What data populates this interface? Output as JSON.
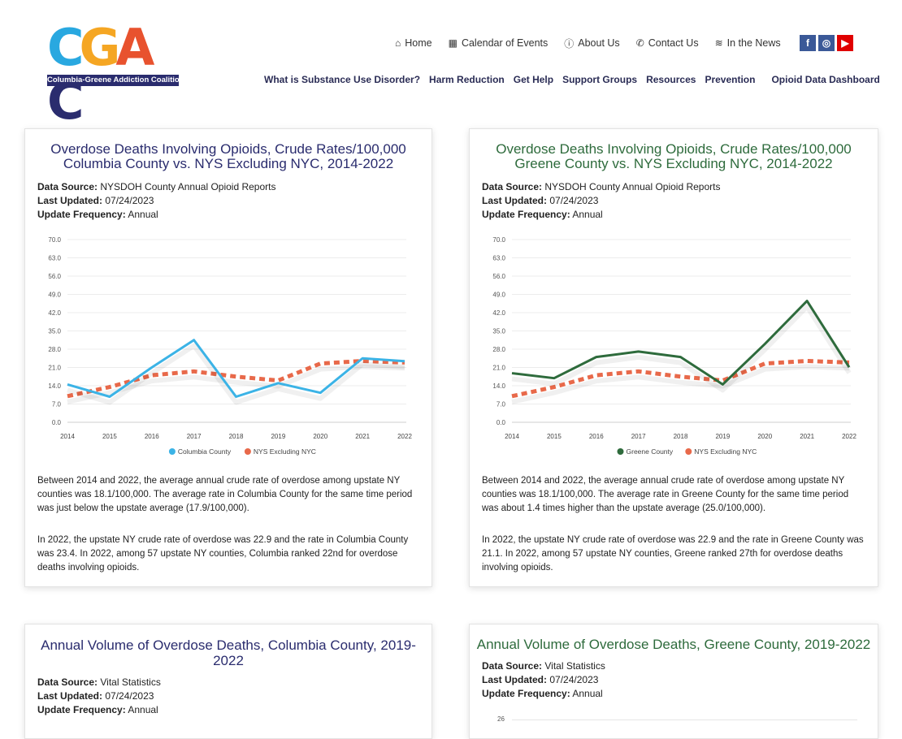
{
  "logo": {
    "letters": [
      "C",
      "G",
      "A",
      "C"
    ],
    "colors": [
      "#29a8e0",
      "#f5a623",
      "#e8522e",
      "#2a2c6e"
    ],
    "tagline": "Columbia-Greene Addiction Coalition"
  },
  "topnav": [
    {
      "icon": "home-icon",
      "glyph": "⌂",
      "label": "Home"
    },
    {
      "icon": "calendar-icon",
      "glyph": "▦",
      "label": "Calendar of Events"
    },
    {
      "icon": "info-icon",
      "glyph": "ⓘ",
      "label": "About Us"
    },
    {
      "icon": "phone-icon",
      "glyph": "✆",
      "label": "Contact Us"
    },
    {
      "icon": "rss-icon",
      "glyph": "≋",
      "label": "In the News"
    }
  ],
  "social": [
    {
      "icon": "facebook-icon",
      "glyph": "f",
      "color": "#3b5998"
    },
    {
      "icon": "instagram-icon",
      "glyph": "◎",
      "color": "#3b5998"
    },
    {
      "icon": "youtube-icon",
      "glyph": "▶",
      "color": "#e00000"
    }
  ],
  "mainnav": [
    "What is Substance Use Disorder?",
    "Harm Reduction",
    "Get Help",
    "Support Groups",
    "Resources",
    "Prevention",
    "Opioid Data Dashboard"
  ],
  "cards": {
    "columbia_rate": {
      "title_line1": "Overdose Deaths Involving Opioids, Crude Rates/100,000",
      "title_line2": "Columbia County vs. NYS Excluding NYC, 2014-2022",
      "source_label": "Data Source:",
      "source": "NYSDOH County Annual Opioid Reports",
      "updated_label": "Last Updated:",
      "updated": "07/24/2023",
      "freq_label": "Update Frequency:",
      "freq": "Annual",
      "para1": "Between 2014 and 2022, the average annual crude rate of overdose among upstate NY counties was  18.1/100,000.  The average rate in Columbia County for the same time period was just below the upstate average (17.9/100,000).",
      "para2": "In 2022, the upstate NY crude rate of overdose was 22.9 and the rate in Columbia County was 23.4. In 2022, among 57 upstate NY counties, Columbia ranked 22nd for overdose deaths involving opioids."
    },
    "greene_rate": {
      "title_line1": "Overdose Deaths Involving Opioids, Crude Rates/100,000",
      "title_line2": "Greene County vs. NYS Excluding NYC, 2014-2022",
      "source_label": "Data Source:",
      "source": "NYSDOH County Annual Opioid Reports",
      "updated_label": "Last Updated:",
      "updated": "07/24/2023",
      "freq_label": "Update Frequency:",
      "freq": "Annual",
      "para1": "Between 2014 and 2022, the average annual crude rate of overdose among upstate NY counties was  18.1/100,000.  The average rate in Greene County for the same time period was about 1.4 times higher than the upstate average (25.0/100,000).",
      "para2": "In 2022, the upstate NY crude rate of overdose was 22.9 and the rate in Greene County was 21.1.  In 2022, among 57 upstate NY counties, Greene ranked 27th for overdose deaths involving opioids."
    },
    "columbia_volume": {
      "title_line1": "Annual Volume of Overdose Deaths, Columbia County, 2019-",
      "title_line2": "2022",
      "source_label": "Data Source:",
      "source": "Vital Statistics",
      "updated_label": "Last Updated:",
      "updated": "07/24/2023",
      "freq_label": "Update Frequency:",
      "freq": "Annual"
    },
    "greene_volume": {
      "title_line1": "Annual Volume of Overdose Deaths, Greene County, 2019-2022",
      "source_label": "Data Source:",
      "source": "Vital Statistics",
      "updated_label": "Last Updated:",
      "updated": "07/24/2023",
      "freq_label": "Update Frequency:",
      "freq": "Annual",
      "partial_tick": "26"
    }
  },
  "chart_data": [
    {
      "type": "line",
      "x": [
        "2014",
        "2015",
        "2016",
        "2017",
        "2018",
        "2019",
        "2020",
        "2021",
        "2022"
      ],
      "ylim": [
        0,
        70
      ],
      "yticks": [
        "0.0",
        "7.0",
        "14.0",
        "21.0",
        "28.0",
        "35.0",
        "42.0",
        "49.0",
        "56.0",
        "63.0",
        "70.0"
      ],
      "legend_position": "bottom",
      "series": [
        {
          "name": "Columbia County",
          "color": "#3bb3e6",
          "dashed": false,
          "values": [
            14.5,
            9.8,
            21.0,
            31.5,
            9.8,
            15.0,
            11.3,
            24.5,
            23.4
          ]
        },
        {
          "name": "NYS Excluding NYC",
          "color": "#e8694a",
          "dashed": true,
          "values": [
            10.0,
            13.5,
            18.0,
            19.5,
            17.5,
            16.0,
            22.5,
            23.5,
            22.9
          ]
        }
      ]
    },
    {
      "type": "line",
      "x": [
        "2014",
        "2015",
        "2016",
        "2017",
        "2018",
        "2019",
        "2020",
        "2021",
        "2022"
      ],
      "ylim": [
        0,
        70
      ],
      "yticks": [
        "0.0",
        "7.0",
        "14.0",
        "21.0",
        "28.0",
        "35.0",
        "42.0",
        "49.0",
        "56.0",
        "63.0",
        "70.0"
      ],
      "legend_position": "bottom",
      "series": [
        {
          "name": "Greene County",
          "color": "#2e6b3c",
          "dashed": false,
          "values": [
            18.8,
            16.9,
            25.0,
            27.1,
            25.0,
            14.5,
            30.0,
            46.5,
            21.1
          ]
        },
        {
          "name": "NYS Excluding NYC",
          "color": "#e8694a",
          "dashed": true,
          "values": [
            10.0,
            13.5,
            18.0,
            19.5,
            17.5,
            16.0,
            22.5,
            23.5,
            22.9
          ]
        }
      ]
    }
  ]
}
